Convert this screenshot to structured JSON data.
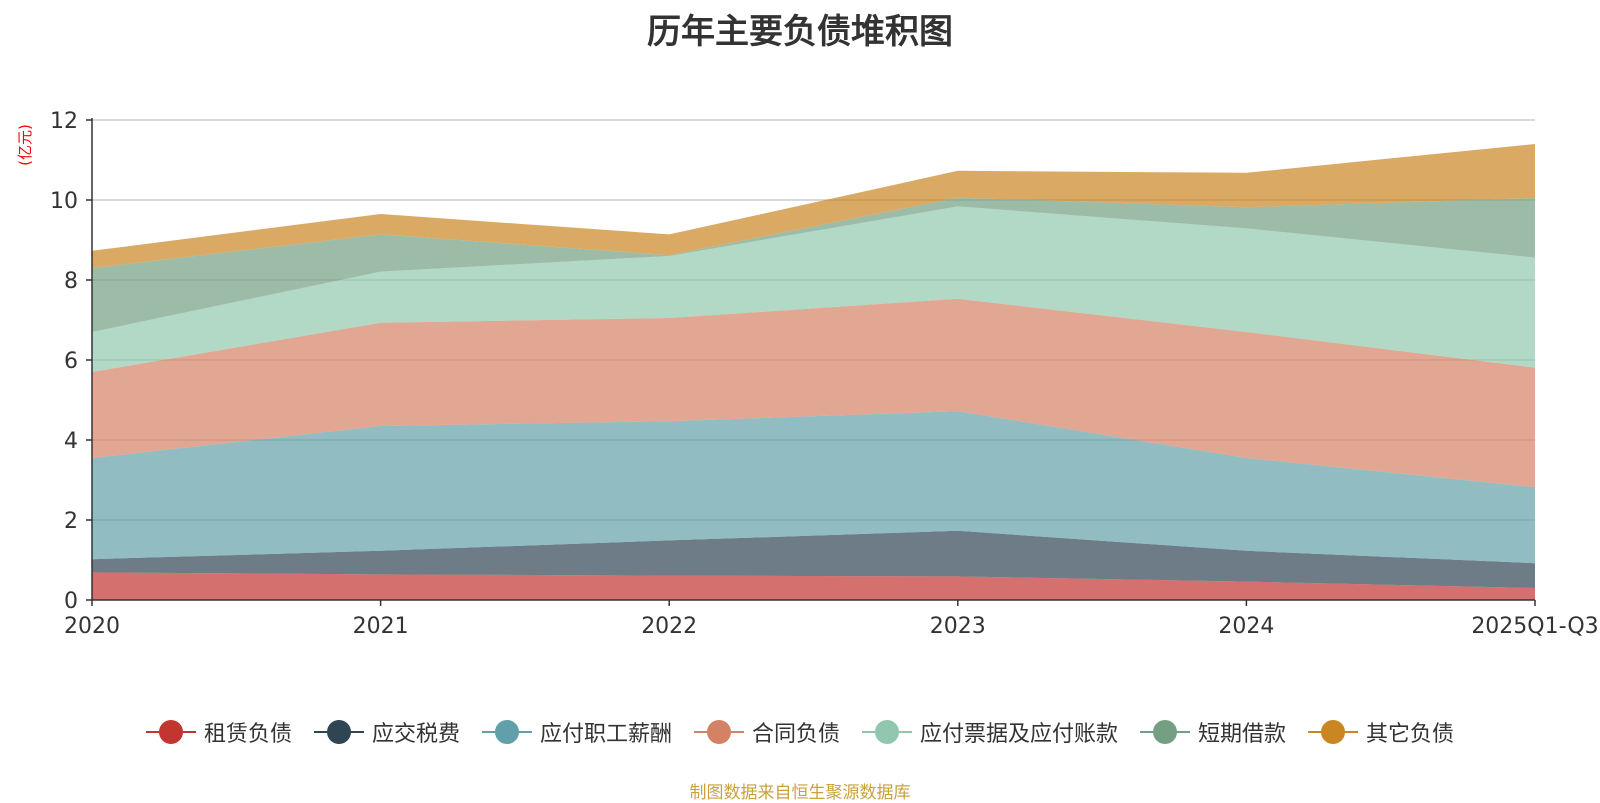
{
  "chart_data": {
    "type": "area",
    "stacked": true,
    "title": "历年主要负债堆积图",
    "ylabel": "(亿元)",
    "xlabel": "",
    "ylim": [
      0,
      12
    ],
    "yticks": [
      0,
      2,
      4,
      6,
      8,
      10,
      12
    ],
    "categories": [
      "2020",
      "2021",
      "2022",
      "2023",
      "2024",
      "2025Q1-Q3"
    ],
    "series": [
      {
        "name": "租赁负债",
        "color": "#c23531",
        "values": [
          0.69,
          0.64,
          0.61,
          0.59,
          0.46,
          0.3
        ]
      },
      {
        "name": "应交税费",
        "color": "#2f4554",
        "values": [
          0.33,
          0.59,
          0.88,
          1.14,
          0.77,
          0.62
        ]
      },
      {
        "name": "应付职工薪酬",
        "color": "#61a0a8",
        "values": [
          2.53,
          3.12,
          2.98,
          2.99,
          2.32,
          1.9
        ]
      },
      {
        "name": "合同负债",
        "color": "#d48265",
        "values": [
          2.15,
          2.58,
          2.58,
          2.81,
          3.15,
          2.99
        ]
      },
      {
        "name": "应付票据及应付账款",
        "color": "#91c7ae",
        "values": [
          1.0,
          1.28,
          1.55,
          2.31,
          2.59,
          2.75
        ]
      },
      {
        "name": "短期借款",
        "color": "#749f83",
        "values": [
          1.6,
          0.93,
          0.02,
          0.22,
          0.53,
          1.49
        ]
      },
      {
        "name": "其它负债",
        "color": "#ca8622",
        "values": [
          0.43,
          0.51,
          0.52,
          0.67,
          0.86,
          1.35
        ]
      }
    ],
    "legend_position": "bottom-center",
    "grid": true
  },
  "source_note": "制图数据来自恒生聚源数据库"
}
